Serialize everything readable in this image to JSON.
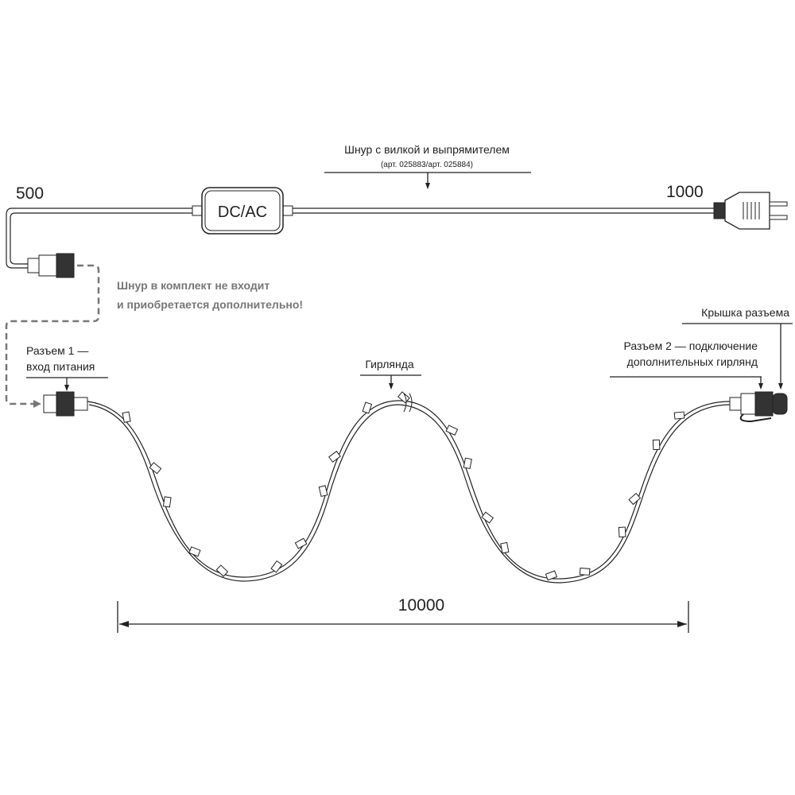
{
  "top_cord": {
    "title": "Шнур с вилкой и выпрямителем",
    "subtitle": "(арт. 025883/арт. 025884)",
    "length_left": "500",
    "length_right": "1000",
    "box_label": "DC/AC"
  },
  "note": {
    "line1": "Шнур в комплект не входит",
    "line2": "и приобретается дополнительно!"
  },
  "connector1": {
    "line1": "Разъем 1 —",
    "line2": "вход питания"
  },
  "garland": {
    "label": "Гирлянда",
    "length": "10000"
  },
  "connector2": {
    "line1": "Разъем 2 — подключение",
    "line2": "дополнительных гирлянд"
  },
  "cap": {
    "label": "Крышка разъема"
  }
}
